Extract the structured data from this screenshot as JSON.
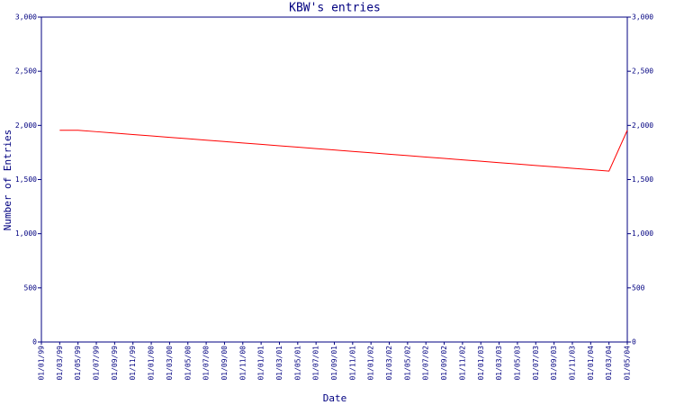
{
  "chart_data": {
    "type": "line",
    "title": "KBW's entries",
    "x_label": "Date",
    "y_label": "Number of Entries",
    "categories": [
      "01/01/99",
      "01/03/99",
      "01/05/99",
      "01/07/99",
      "01/09/99",
      "01/11/99",
      "01/01/00",
      "01/03/00",
      "01/05/00",
      "01/07/00",
      "01/09/00",
      "01/11/00",
      "01/01/01",
      "01/03/01",
      "01/05/01",
      "01/07/01",
      "01/09/01",
      "01/11/01",
      "01/01/02",
      "01/03/02",
      "01/05/02",
      "01/07/02",
      "01/09/02",
      "01/11/02",
      "01/01/03",
      "01/03/03",
      "01/05/03",
      "01/07/03",
      "01/09/03",
      "01/11/03",
      "01/01/04",
      "01/03/04",
      "01/05/04"
    ],
    "values": [
      null,
      1955,
      1955,
      1942,
      1929,
      1916,
      1903,
      1890,
      1877,
      1864,
      1851,
      1838,
      1825,
      1812,
      1799,
      1786,
      1773,
      1760,
      1747,
      1734,
      1721,
      1708,
      1695,
      1682,
      1669,
      1656,
      1643,
      1630,
      1617,
      1604,
      1591,
      1578,
      1955
    ],
    "color": "#ff0000",
    "axis_color": "#000080",
    "ylim": [
      0,
      3000
    ],
    "yticks": [
      0,
      500,
      {
        "value": 1000,
        "label": "1,000"
      },
      {
        "value": 1500,
        "label": "1,500"
      },
      {
        "value": 2000,
        "label": "2,000"
      },
      {
        "value": 2500,
        "label": "2,500"
      },
      {
        "value": 3000,
        "label": "3,000"
      }
    ],
    "grid": false
  }
}
